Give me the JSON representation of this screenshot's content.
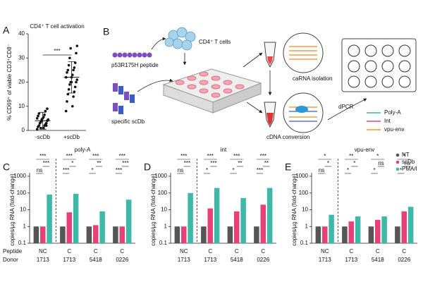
{
  "diagram": {
    "panel": "B",
    "cells_label": "CD4⁺ T cells",
    "peptide_label": "p53R175H peptide",
    "scdb_label": "specific scDb",
    "isolation_label": "caRNA isolation",
    "conversion_label": "cDNA conversion",
    "dpcr_label": "dPCR",
    "targets": [
      "Poly-A",
      "Int",
      "vpu-env"
    ]
  },
  "chart_data": [
    {
      "type": "strip",
      "panel": "A",
      "title": "CD4⁺ T cell activation",
      "ylabel": "% CD69⁺ of viable CD3⁺CD8⁻",
      "categories": [
        "-scDb",
        "+scDb"
      ],
      "points": [
        [
          0.5,
          1,
          1.5,
          2,
          2,
          2.5,
          3,
          3,
          3.5,
          4,
          4,
          4.5,
          5,
          5,
          5.5,
          6,
          6.5,
          7,
          8,
          3,
          2,
          1,
          9,
          4.5
        ],
        [
          8,
          10,
          12,
          14,
          15,
          16,
          17,
          18,
          19,
          20,
          20,
          21,
          22,
          22,
          23,
          24,
          25,
          25,
          26,
          27,
          28,
          30,
          32,
          34,
          35,
          20
        ]
      ],
      "means": [
        4,
        22
      ],
      "sd": [
        3.5,
        6.5
      ],
      "annotation": "***",
      "ylim": [
        0,
        40
      ],
      "yticks": [
        0,
        10,
        20,
        30,
        40
      ]
    },
    {
      "type": "bar",
      "panel": "C",
      "title": "poly-A",
      "ylabel": "copies/µg RNA (fold-change)",
      "log": true,
      "row_labels": [
        "Peptide",
        "Donor"
      ],
      "categories": [
        "NC",
        "C",
        "C",
        "C"
      ],
      "donors": [
        "1713",
        "1713",
        "5418",
        "0226"
      ],
      "series": [
        {
          "name": "NT",
          "color": "#555555",
          "values": [
            1,
            1,
            1,
            1
          ]
        },
        {
          "name": "scDb",
          "color": "#e8417a",
          "values": [
            1,
            7,
            1.2,
            1
          ]
        },
        {
          "name": "PMA/I",
          "color": "#3fb8a8",
          "values": [
            80,
            90,
            8,
            40
          ]
        }
      ],
      "annotations": [
        [
          "ns",
          "***",
          "***"
        ],
        [
          "***",
          "***",
          "*"
        ],
        [
          "*",
          "***",
          "**"
        ],
        [
          "***",
          "***",
          "***"
        ]
      ],
      "ylim": [
        0.1,
        1000
      ],
      "yticks": [
        0.1,
        1,
        10,
        100,
        1000
      ]
    },
    {
      "type": "bar",
      "panel": "D",
      "title": "int",
      "ylabel": "copies/µg RNA (fold-change)",
      "log": true,
      "categories": [
        "NC",
        "C",
        "C",
        "C"
      ],
      "donors": [
        "1713",
        "1713",
        "5418",
        "0226"
      ],
      "series": [
        {
          "name": "NT",
          "color": "#555555",
          "values": [
            1,
            1,
            1,
            1
          ]
        },
        {
          "name": "scDb",
          "color": "#e8417a",
          "values": [
            1,
            12,
            8,
            20
          ]
        },
        {
          "name": "PMA/I",
          "color": "#3fb8a8",
          "values": [
            100,
            200,
            50,
            200
          ]
        }
      ],
      "annotations": [
        [
          "ns",
          "***",
          "***"
        ],
        [
          "*",
          "***",
          "***"
        ],
        [
          "*",
          "***",
          "**"
        ],
        [
          "***",
          "***",
          "**"
        ]
      ],
      "ylim": [
        0.1,
        1000
      ],
      "yticks": [
        0.1,
        1,
        10,
        100,
        1000
      ]
    },
    {
      "type": "bar",
      "panel": "E",
      "title": "vpu-env",
      "ylabel": "copies/µg RNA (fold-change)",
      "log": true,
      "legend": "upper right",
      "categories": [
        "NC",
        "C",
        "C",
        "C"
      ],
      "donors": [
        "1713",
        "1713",
        "5418",
        "0226"
      ],
      "series": [
        {
          "name": "NT",
          "color": "#555555",
          "values": [
            1,
            1,
            1,
            1
          ]
        },
        {
          "name": "scDb",
          "color": "#e8417a",
          "values": [
            1,
            2,
            2.5,
            8
          ]
        },
        {
          "name": "PMA/I",
          "color": "#3fb8a8",
          "values": [
            5,
            4,
            4,
            15
          ]
        }
      ],
      "annotations": [
        [
          "ns",
          "*",
          "*"
        ],
        [
          "*",
          "**",
          "*"
        ],
        [
          "*",
          "*",
          "ns"
        ],
        [
          "*",
          "*",
          "ns"
        ]
      ],
      "ylim": [
        0.1,
        1000
      ],
      "yticks": [
        0.1,
        1,
        10,
        100,
        1000
      ]
    }
  ]
}
